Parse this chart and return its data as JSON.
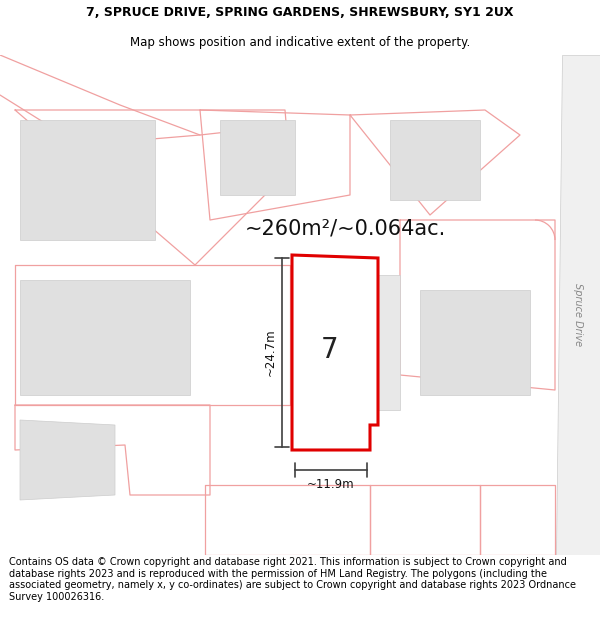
{
  "title_line1": "7, SPRUCE DRIVE, SPRING GARDENS, SHREWSBURY, SY1 2UX",
  "title_line2": "Map shows position and indicative extent of the property.",
  "area_text": "~260m²/~0.064ac.",
  "label_number": "7",
  "dim_height": "~24.7m",
  "dim_width": "~11.9m",
  "road_label": "Spruce Drive",
  "footer_text": "Contains OS data © Crown copyright and database right 2021. This information is subject to Crown copyright and database rights 2023 and is reproduced with the permission of HM Land Registry. The polygons (including the associated geometry, namely x, y co-ordinates) are subject to Crown copyright and database rights 2023 Ordnance Survey 100026316.",
  "bg_color": "#ffffff",
  "map_bg": "#ffffff",
  "plot_fill": "#ffffff",
  "plot_stroke": "#e00000",
  "neighbor_fill": "#e0e0e0",
  "neighbor_stroke": "#f0a0a0",
  "road_color": "#f0a0a0",
  "dim_color": "#404040",
  "title_fontsize": 9.0,
  "subtitle_fontsize": 8.5,
  "area_fontsize": 15,
  "number_fontsize": 20,
  "dim_fontsize": 8.5,
  "footer_fontsize": 7.0
}
